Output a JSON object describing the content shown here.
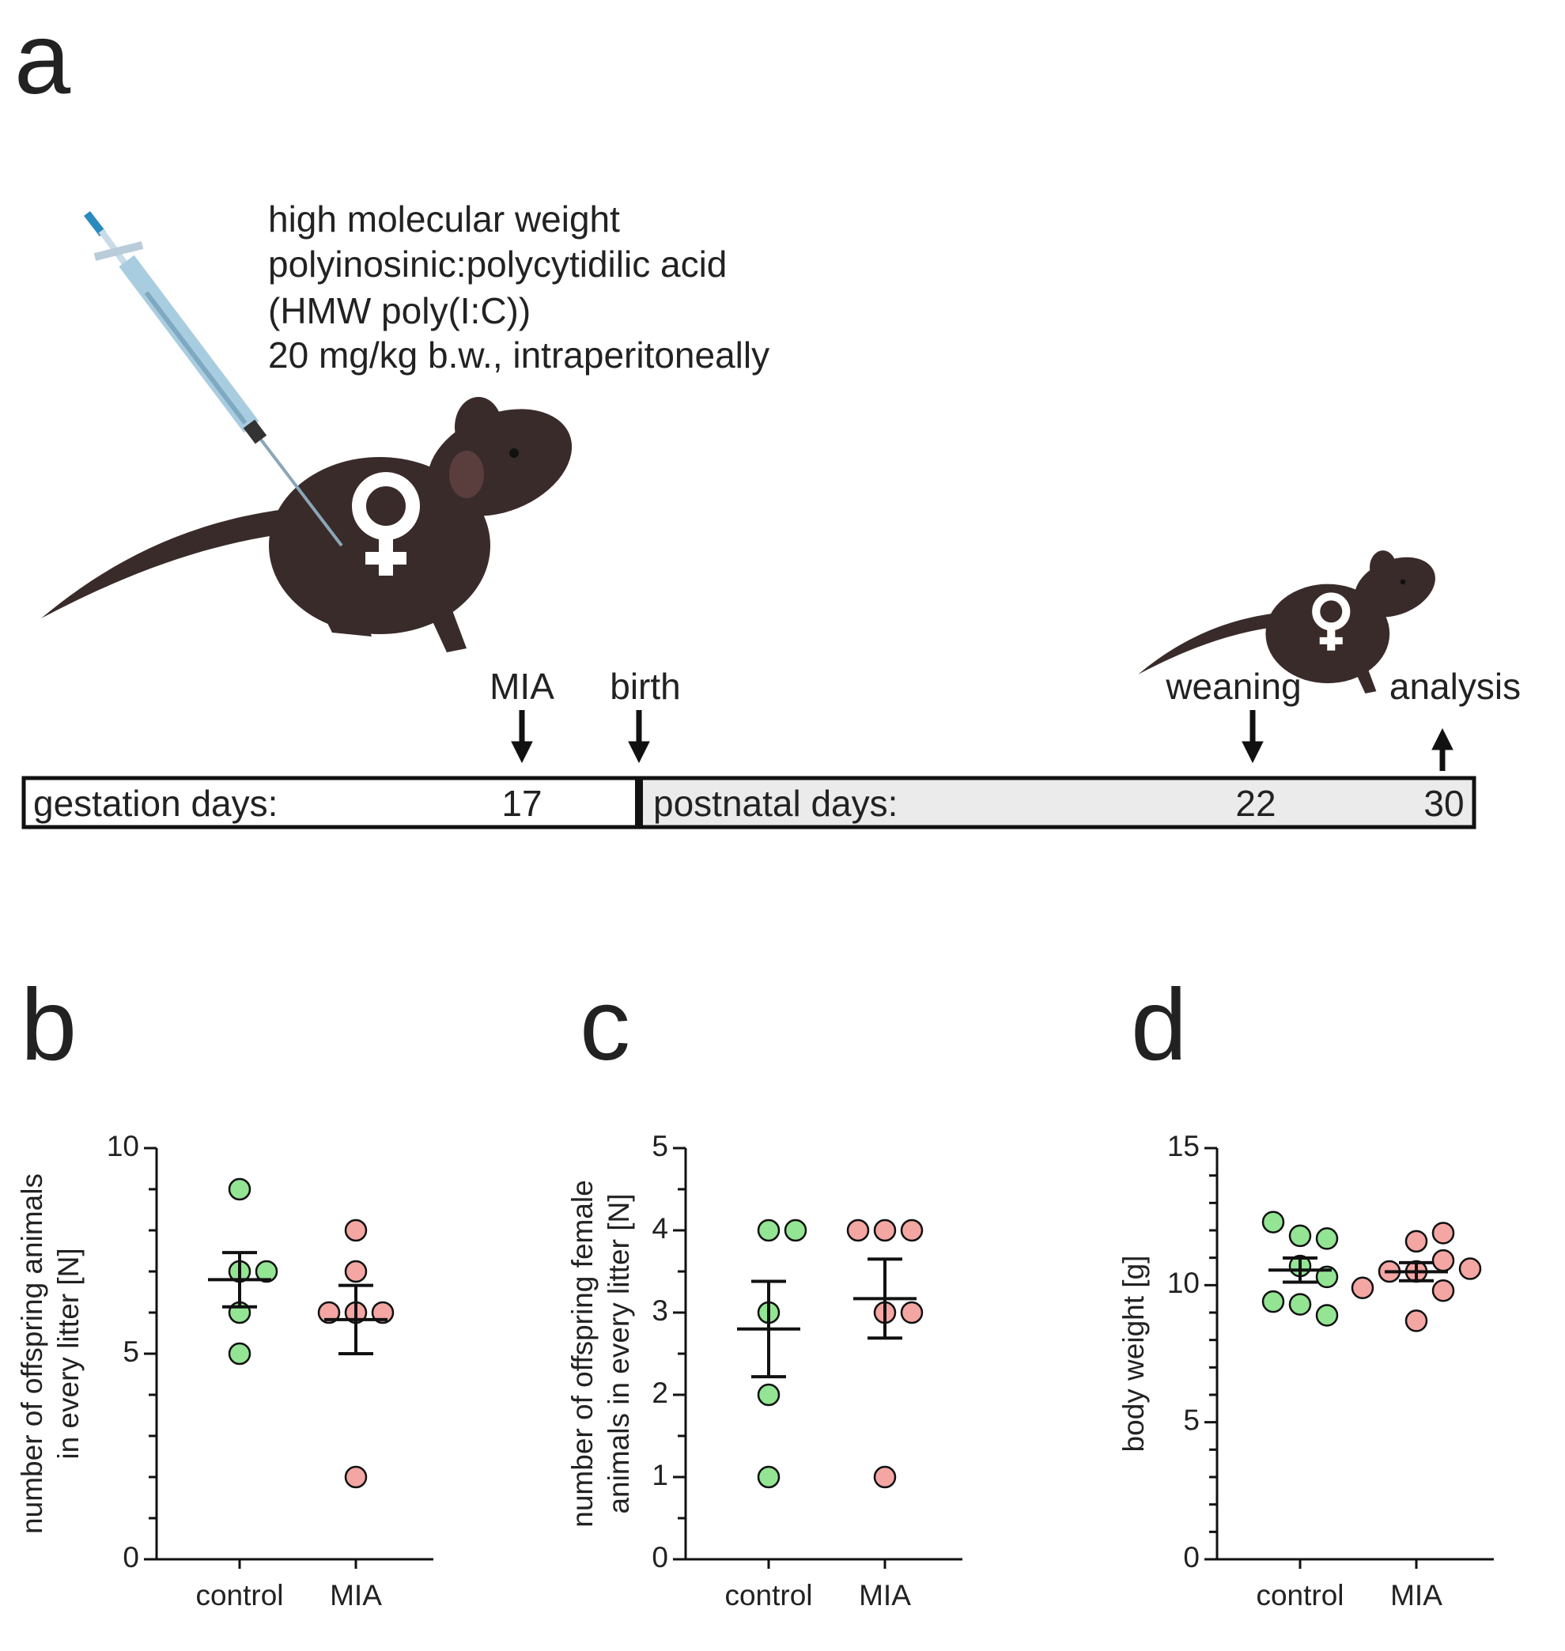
{
  "panel_a": {
    "label": "a",
    "injection_text": [
      "high molecular weight",
      "polyinosinic:polycytidilic acid",
      "(HMW poly(I:C))",
      "20 mg/kg b.w., intraperitoneally"
    ],
    "events": [
      "MIA",
      "birth",
      "weaning",
      "analysis"
    ],
    "gestation_label": "gestation days:",
    "gestation_day": 17,
    "postnatal_label": "postnatal days:",
    "postnatal_days": [
      22,
      30
    ]
  },
  "chart_data": [
    {
      "type": "strip",
      "panel": "b",
      "ylabel": [
        "number of offspring animals",
        "in every litter [N]"
      ],
      "categories": [
        "control",
        "MIA"
      ],
      "groups": [
        {
          "color": "#93e593",
          "values": [
            9,
            7,
            7,
            6,
            5
          ],
          "mean": 6.8,
          "sem": 0.66
        },
        {
          "color": "#f4a6a3",
          "values": [
            8,
            7,
            6,
            6,
            6,
            2
          ],
          "mean": 5.83,
          "sem": 0.83
        }
      ],
      "ylim": [
        0,
        10
      ],
      "yticks": [
        0,
        5,
        10
      ],
      "minor_yticks": [
        1,
        2,
        3,
        4,
        6,
        7,
        8,
        9
      ]
    },
    {
      "type": "strip",
      "panel": "c",
      "ylabel": [
        "number of offspring female",
        "animals in every litter [N]"
      ],
      "categories": [
        "control",
        "MIA"
      ],
      "groups": [
        {
          "color": "#93e593",
          "values": [
            4,
            4,
            3,
            2,
            1
          ],
          "mean": 2.8,
          "sem": 0.58
        },
        {
          "color": "#f4a6a3",
          "values": [
            4,
            4,
            4,
            3,
            3,
            1
          ],
          "mean": 3.17,
          "sem": 0.48
        }
      ],
      "ylim": [
        0,
        5
      ],
      "yticks": [
        0,
        1,
        2,
        3,
        4,
        5
      ],
      "minor_yticks": [
        0.5,
        1.5,
        2.5,
        3.5,
        4.5
      ]
    },
    {
      "type": "strip",
      "panel": "d",
      "ylabel": [
        "body weight [g]"
      ],
      "categories": [
        "control",
        "MIA"
      ],
      "groups": [
        {
          "color": "#93e593",
          "values": [
            11.8,
            11.7,
            12.3,
            10.7,
            10.3,
            9.3,
            8.9,
            9.4
          ],
          "mean": 10.55,
          "sem": 0.44
        },
        {
          "color": "#f4a6a3",
          "values": [
            11.6,
            11.9,
            10.5,
            10.9,
            10.5,
            10.6,
            9.8,
            9.9,
            8.7
          ],
          "mean": 10.49,
          "sem": 0.33
        }
      ],
      "ylim": [
        0,
        15
      ],
      "yticks": [
        0,
        5,
        10,
        15
      ],
      "minor_yticks": [
        1,
        2,
        3,
        4,
        6,
        7,
        8,
        9,
        11,
        12,
        13,
        14
      ]
    }
  ]
}
